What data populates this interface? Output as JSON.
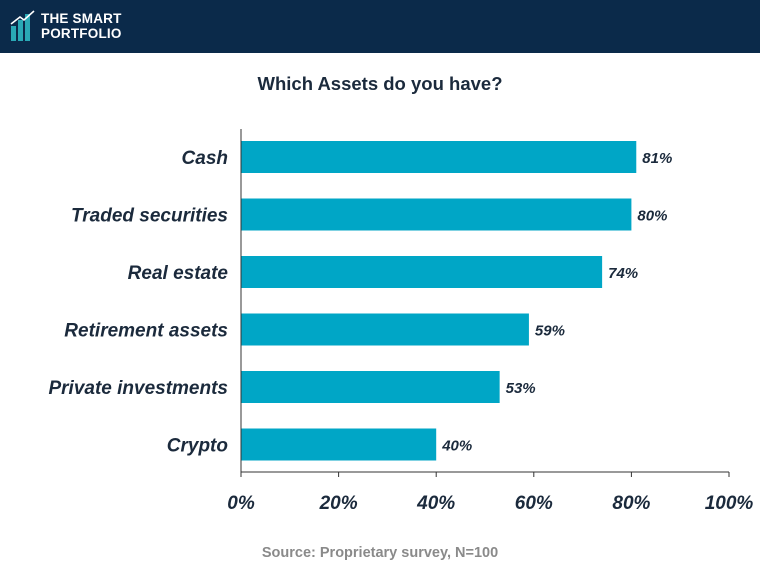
{
  "header": {
    "logo_line1": "THE SMART",
    "logo_line2": "PORTFOLIO",
    "logo_icon": "bar-chart-logo-icon"
  },
  "colors": {
    "header_bg": "#0b2a4a",
    "bar": "#00a6c6",
    "logo_accent": "#2aa9b6",
    "text_dark": "#1b2a3c"
  },
  "chart_data": {
    "type": "bar",
    "orientation": "horizontal",
    "title": "Which Assets do you have?",
    "categories": [
      "Cash",
      "Traded securities",
      "Real estate",
      "Retirement assets",
      "Private investments",
      "Crypto"
    ],
    "values": [
      81,
      80,
      74,
      59,
      53,
      40
    ],
    "data_labels": [
      "81%",
      "80%",
      "74%",
      "59%",
      "53%",
      "40%"
    ],
    "xlim": [
      0,
      100
    ],
    "x_ticks": [
      0,
      20,
      40,
      60,
      80,
      100
    ],
    "x_tick_labels": [
      "0%",
      "20%",
      "40%",
      "60%",
      "80%",
      "100%"
    ],
    "xlabel": "",
    "ylabel": "",
    "grid": false,
    "legend": "none"
  },
  "footer": {
    "source": "Source: Proprietary survey, N=100"
  }
}
